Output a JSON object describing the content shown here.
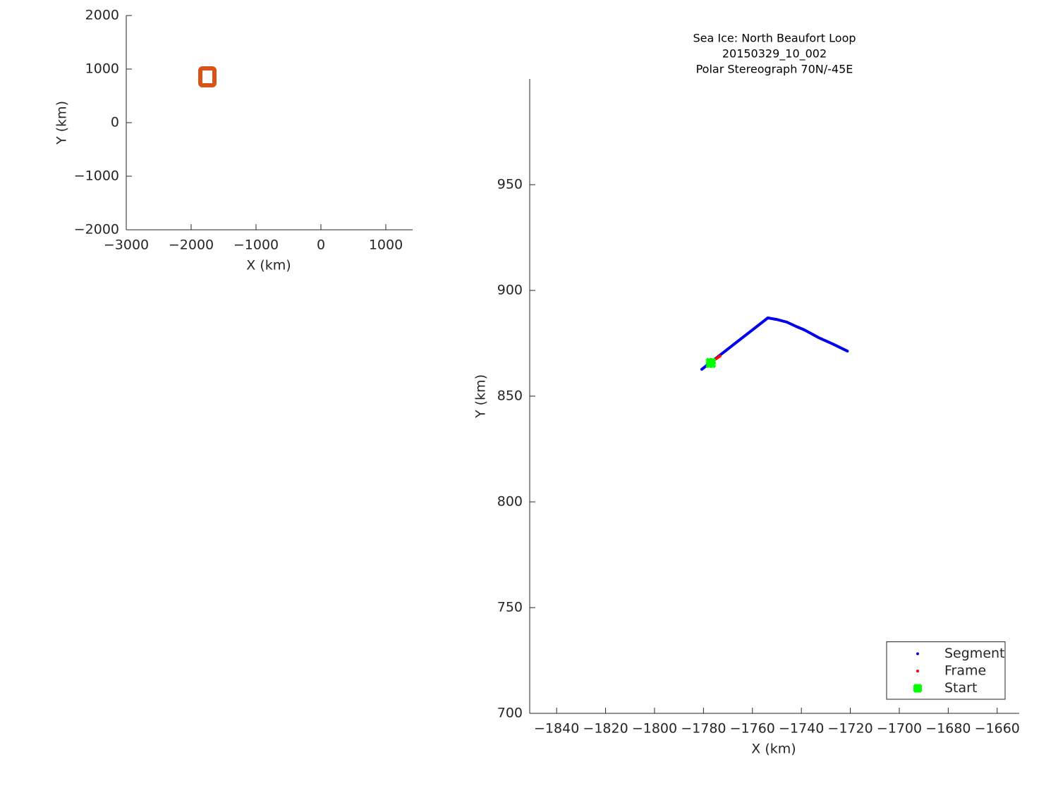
{
  "chart_data": [
    {
      "type": "line",
      "xlabel": "X (km)",
      "ylabel": "Y (km)",
      "xlim": [
        -3000,
        1413
      ],
      "ylim": [
        -2000,
        2000
      ],
      "xticks": [
        {
          "value": -3000,
          "label": "−3000"
        },
        {
          "value": -2000,
          "label": "−2000"
        },
        {
          "value": -1000,
          "label": "−1000"
        },
        0,
        1000
      ],
      "yticks": [
        {
          "value": -2000,
          "label": "−2000"
        },
        {
          "value": -1000,
          "label": "−1000"
        },
        0,
        1000,
        2000
      ],
      "series": [
        {
          "color": "#d95319",
          "marker": "s",
          "x": [
            -1750
          ],
          "values": [
            855
          ]
        }
      ]
    },
    {
      "type": "line",
      "title": [
        "Sea Ice: North Beaufort Loop",
        "20150329_10_002",
        "Polar Stereograph 70N/-45E"
      ],
      "xlabel": "X (km)",
      "ylabel": "Y (km)",
      "xlim": [
        -1851,
        -1651
      ],
      "ylim": [
        700,
        1000
      ],
      "xticks": [
        {
          "value": -1840,
          "label": "−1840"
        },
        {
          "value": -1820,
          "label": "−1820"
        },
        {
          "value": -1800,
          "label": "−1800"
        },
        {
          "value": -1780,
          "label": "−1780"
        },
        {
          "value": -1760,
          "label": "−1760"
        },
        {
          "value": -1740,
          "label": "−1740"
        },
        {
          "value": -1720,
          "label": "−1720"
        },
        {
          "value": -1700,
          "label": "−1700"
        },
        {
          "value": -1680,
          "label": "−1680"
        },
        {
          "value": -1660,
          "label": "−1660"
        }
      ],
      "yticks": [
        700,
        750,
        800,
        850,
        900,
        950
      ],
      "legend": "lower right",
      "series": [
        {
          "name": "Segment",
          "color": "#0000ee",
          "marker": ".",
          "x": [
            -1780.7,
            -1753.7,
            -1750.2,
            -1745.9,
            -1742.2,
            -1738.7,
            -1733,
            -1727.2,
            -1721.2
          ],
          "values": [
            862.7,
            887,
            886.3,
            885,
            883,
            881.3,
            877.7,
            874.7,
            871.3
          ]
        },
        {
          "name": "Frame",
          "color": "#ff0000",
          "marker": ".",
          "x": [
            -1777,
            -1773.2
          ],
          "values": [
            866,
            869
          ]
        },
        {
          "name": "Start",
          "color": "#00ff00",
          "marker": "x",
          "x": [
            -1777
          ],
          "values": [
            865.7
          ]
        }
      ]
    }
  ]
}
